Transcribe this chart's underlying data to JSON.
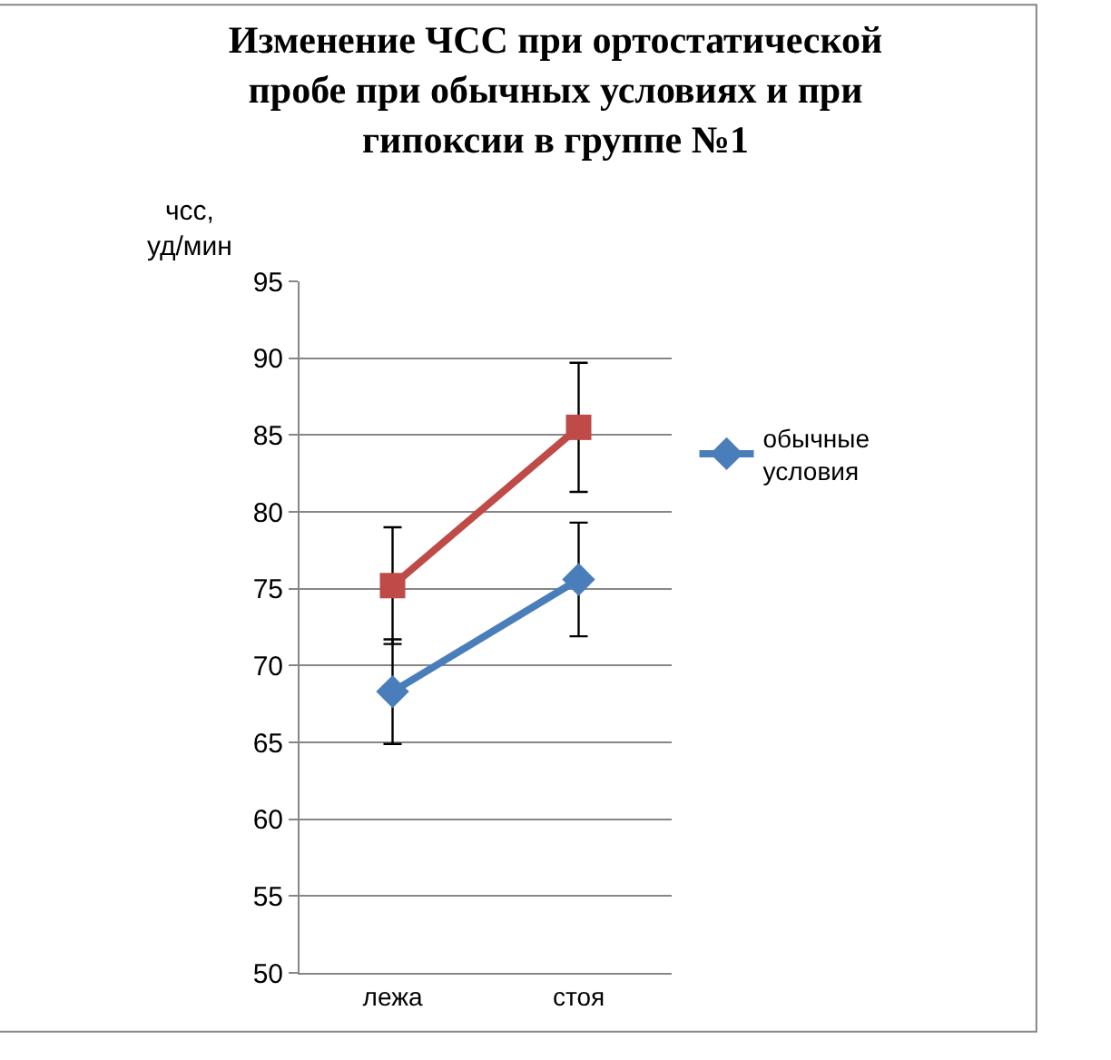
{
  "chart_data": {
    "type": "line",
    "title": "Изменение ЧСС при ортостатической пробе при обычных условиях и при гипоксии в группе №1",
    "ylabel": "чсс, уд/мин",
    "categories": [
      "лежа",
      "стоя"
    ],
    "series": [
      {
        "name": "обычные условия",
        "color": "#4a7ebb",
        "values": [
          68.3,
          75.6
        ],
        "errors": [
          3.4,
          3.7
        ],
        "marker": "diamond"
      },
      {
        "color": "#be4b48",
        "values": [
          75.2,
          85.5
        ],
        "errors": [
          3.8,
          4.2
        ],
        "marker": "square"
      }
    ],
    "ylim": [
      50,
      95
    ],
    "yticks": [
      50,
      55,
      60,
      65,
      70,
      75,
      80,
      85,
      90,
      95
    ],
    "grid": "y",
    "legend": "right"
  }
}
